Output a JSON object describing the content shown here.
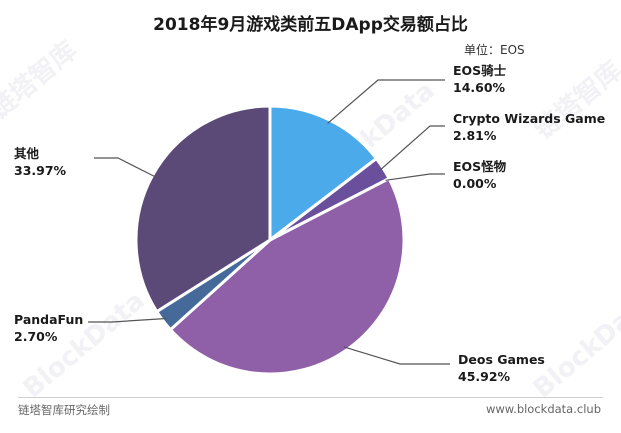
{
  "chart_data": {
    "type": "pie",
    "title": "2018年9月游戏类前五DApp交易额占比",
    "unit_label": "单位：EOS",
    "slices": [
      {
        "name": "EOS骑士",
        "value": 14.6,
        "pct_label": "14.60%",
        "color": "#4aaaea"
      },
      {
        "name": "Crypto Wizards Game",
        "value": 2.81,
        "pct_label": "2.81%",
        "color": "#6a4f9c"
      },
      {
        "name": "EOS怪物",
        "value": 0.0,
        "pct_label": "0.00%",
        "color": "#7b5aa6"
      },
      {
        "name": "Deos Games",
        "value": 45.92,
        "pct_label": "45.92%",
        "color": "#8f5fa8"
      },
      {
        "name": "PandaFun",
        "value": 2.7,
        "pct_label": "2.70%",
        "color": "#456a9a"
      },
      {
        "name": "其他",
        "value": 33.97,
        "pct_label": "33.97%",
        "color": "#5b4a78"
      }
    ]
  },
  "footer": {
    "source": "链塔智库研究绘制",
    "website": "www.blockdata.club"
  },
  "watermark": {
    "cn": "链塔智库",
    "en": "BlockData"
  }
}
